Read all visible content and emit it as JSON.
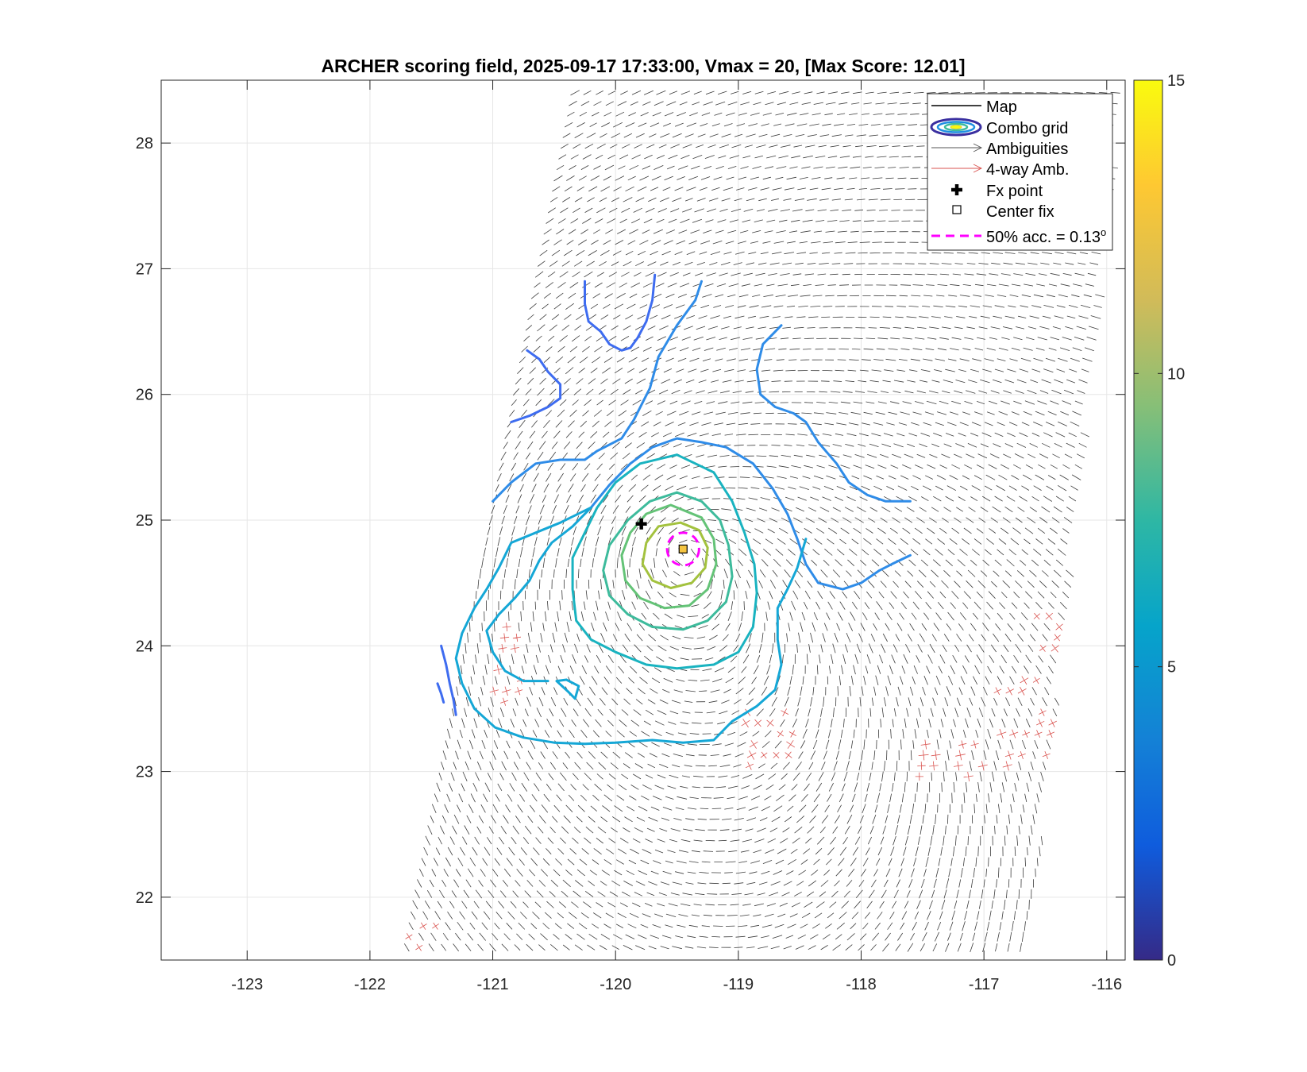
{
  "chart_data": {
    "type": "contour",
    "title": "ARCHER scoring field, 2025-09-17 17:33:00, Vmax = 20, [Max Score: 12.01]",
    "xlabel": "",
    "ylabel": "",
    "xlim": [
      -123.7,
      -115.85
    ],
    "ylim": [
      21.5,
      28.5
    ],
    "xticks": [
      -123,
      -122,
      -121,
      -120,
      -119,
      -118,
      -117,
      -116
    ],
    "yticks": [
      22,
      23,
      24,
      25,
      26,
      27,
      28
    ],
    "grid": true,
    "colorbar": {
      "range": [
        0,
        15
      ],
      "ticks": [
        0,
        5,
        10,
        15
      ],
      "colormap": "parula"
    },
    "center": {
      "lon": -119.45,
      "lat": 24.77
    },
    "contour_levels": [
      {
        "level": 3.8,
        "color": "#3e6cf0",
        "segments": [
          [
            [
              -120.25,
              26.9
            ],
            [
              -120.25,
              26.72
            ],
            [
              -120.22,
              26.58
            ],
            [
              -120.12,
              26.5
            ],
            [
              -120.05,
              26.4
            ],
            [
              -119.95,
              26.35
            ],
            [
              -119.88,
              26.37
            ]
          ],
          [
            [
              -119.88,
              26.37
            ],
            [
              -119.82,
              26.45
            ],
            [
              -119.75,
              26.58
            ],
            [
              -119.7,
              26.75
            ],
            [
              -119.68,
              26.95
            ]
          ],
          [
            [
              -120.72,
              26.35
            ],
            [
              -120.62,
              26.28
            ],
            [
              -120.55,
              26.18
            ],
            [
              -120.45,
              26.08
            ],
            [
              -120.45,
              25.97
            ],
            [
              -120.55,
              25.9
            ],
            [
              -120.7,
              25.83
            ],
            [
              -120.85,
              25.78
            ]
          ],
          [
            [
              -121.42,
              24.0
            ],
            [
              -121.38,
              23.85
            ],
            [
              -121.35,
              23.7
            ],
            [
              -121.32,
              23.57
            ],
            [
              -121.3,
              23.45
            ]
          ],
          [
            [
              -121.45,
              23.7
            ],
            [
              -121.42,
              23.62
            ],
            [
              -121.4,
              23.55
            ]
          ]
        ]
      },
      {
        "level": 4.8,
        "color": "#2f8ce8",
        "segments": [
          [
            [
              -121.0,
              25.15
            ],
            [
              -120.85,
              25.3
            ],
            [
              -120.65,
              25.45
            ],
            [
              -120.45,
              25.48
            ],
            [
              -120.25,
              25.48
            ],
            [
              -120.15,
              25.55
            ],
            [
              -119.95,
              25.65
            ],
            [
              -119.85,
              25.8
            ],
            [
              -119.72,
              26.05
            ],
            [
              -119.65,
              26.3
            ],
            [
              -119.5,
              26.55
            ],
            [
              -119.35,
              26.75
            ],
            [
              -119.3,
              26.9
            ]
          ],
          [
            [
              -118.65,
              26.55
            ],
            [
              -118.8,
              26.4
            ],
            [
              -118.85,
              26.2
            ],
            [
              -118.82,
              26.0
            ],
            [
              -118.7,
              25.9
            ],
            [
              -118.55,
              25.85
            ],
            [
              -118.45,
              25.78
            ],
            [
              -118.35,
              25.62
            ],
            [
              -118.2,
              25.45
            ],
            [
              -118.1,
              25.3
            ],
            [
              -117.95,
              25.2
            ],
            [
              -117.8,
              25.15
            ],
            [
              -117.6,
              25.15
            ]
          ],
          [
            [
              -117.6,
              24.72
            ],
            [
              -117.75,
              24.65
            ],
            [
              -117.85,
              24.6
            ],
            [
              -118.0,
              24.5
            ],
            [
              -118.15,
              24.45
            ],
            [
              -118.35,
              24.5
            ],
            [
              -118.45,
              24.65
            ],
            [
              -118.52,
              24.85
            ],
            [
              -118.6,
              25.05
            ],
            [
              -118.72,
              25.25
            ],
            [
              -118.88,
              25.45
            ],
            [
              -119.1,
              25.58
            ],
            [
              -119.3,
              25.62
            ],
            [
              -119.5,
              25.65
            ],
            [
              -119.7,
              25.58
            ],
            [
              -119.88,
              25.45
            ],
            [
              -120.05,
              25.28
            ],
            [
              -120.2,
              25.1
            ]
          ]
        ]
      },
      {
        "level": 6.0,
        "color": "#15a7d6",
        "segments": [
          [
            [
              -120.2,
              25.1
            ],
            [
              -120.45,
              24.98
            ],
            [
              -120.65,
              24.9
            ],
            [
              -120.85,
              24.82
            ],
            [
              -120.95,
              24.62
            ],
            [
              -121.05,
              24.45
            ],
            [
              -121.15,
              24.3
            ],
            [
              -121.25,
              24.1
            ],
            [
              -121.3,
              23.9
            ],
            [
              -121.25,
              23.7
            ],
            [
              -121.15,
              23.5
            ],
            [
              -120.98,
              23.35
            ],
            [
              -120.75,
              23.27
            ],
            [
              -120.5,
              23.23
            ],
            [
              -120.25,
              23.22
            ],
            [
              -120.0,
              23.23
            ],
            [
              -119.7,
              23.25
            ],
            [
              -119.45,
              23.23
            ],
            [
              -119.2,
              23.25
            ],
            [
              -119.05,
              23.4
            ],
            [
              -118.85,
              23.52
            ],
            [
              -118.7,
              23.65
            ],
            [
              -118.65,
              23.85
            ],
            [
              -118.68,
              24.05
            ],
            [
              -118.68,
              24.3
            ],
            [
              -118.6,
              24.45
            ],
            [
              -118.52,
              24.62
            ],
            [
              -118.45,
              24.85
            ]
          ],
          [
            [
              -120.2,
              25.1
            ],
            [
              -120.35,
              24.95
            ],
            [
              -120.52,
              24.82
            ],
            [
              -120.62,
              24.68
            ],
            [
              -120.7,
              24.52
            ],
            [
              -120.82,
              24.38
            ],
            [
              -120.95,
              24.25
            ],
            [
              -121.05,
              24.12
            ],
            [
              -121.0,
              23.95
            ],
            [
              -120.9,
              23.8
            ],
            [
              -120.75,
              23.72
            ],
            [
              -120.55,
              23.72
            ]
          ],
          [
            [
              -120.4,
              23.73
            ],
            [
              -120.3,
              23.68
            ],
            [
              -120.33,
              23.58
            ],
            [
              -120.38,
              23.63
            ],
            [
              -120.48,
              23.72
            ],
            [
              -120.4,
              23.73
            ]
          ]
        ]
      },
      {
        "level": 7.2,
        "color": "#19b3c0",
        "segments": [
          [
            [
              -119.5,
              25.52
            ],
            [
              -119.8,
              25.45
            ],
            [
              -120.0,
              25.3
            ],
            [
              -120.15,
              25.1
            ],
            [
              -120.25,
              24.9
            ],
            [
              -120.35,
              24.7
            ],
            [
              -120.35,
              24.45
            ],
            [
              -120.32,
              24.2
            ],
            [
              -120.2,
              24.05
            ],
            [
              -120.0,
              23.95
            ],
            [
              -119.75,
              23.85
            ],
            [
              -119.5,
              23.82
            ],
            [
              -119.2,
              23.85
            ],
            [
              -119.0,
              23.95
            ],
            [
              -118.88,
              24.15
            ],
            [
              -118.85,
              24.42
            ],
            [
              -118.87,
              24.65
            ],
            [
              -118.95,
              24.9
            ],
            [
              -119.05,
              25.15
            ],
            [
              -119.2,
              25.38
            ],
            [
              -119.5,
              25.52
            ]
          ]
        ]
      },
      {
        "level": 8.4,
        "color": "#3dbb9c",
        "segments": [
          [
            [
              -119.5,
              25.22
            ],
            [
              -119.72,
              25.15
            ],
            [
              -119.9,
              25.0
            ],
            [
              -120.05,
              24.8
            ],
            [
              -120.1,
              24.6
            ],
            [
              -120.05,
              24.4
            ],
            [
              -119.9,
              24.25
            ],
            [
              -119.7,
              24.15
            ],
            [
              -119.45,
              24.13
            ],
            [
              -119.25,
              24.2
            ],
            [
              -119.1,
              24.35
            ],
            [
              -119.05,
              24.55
            ],
            [
              -119.08,
              24.8
            ],
            [
              -119.15,
              25.0
            ],
            [
              -119.3,
              25.15
            ],
            [
              -119.5,
              25.22
            ]
          ]
        ]
      },
      {
        "level": 9.6,
        "color": "#64c377",
        "segments": [
          [
            [
              -119.55,
              25.12
            ],
            [
              -119.75,
              25.05
            ],
            [
              -119.88,
              24.9
            ],
            [
              -119.95,
              24.72
            ],
            [
              -119.92,
              24.52
            ],
            [
              -119.8,
              24.38
            ],
            [
              -119.6,
              24.3
            ],
            [
              -119.4,
              24.32
            ],
            [
              -119.25,
              24.45
            ],
            [
              -119.18,
              24.65
            ],
            [
              -119.2,
              24.85
            ],
            [
              -119.3,
              25.02
            ],
            [
              -119.55,
              25.12
            ]
          ]
        ]
      },
      {
        "level": 10.8,
        "color": "#a3c23e",
        "segments": [
          [
            [
              -119.47,
              24.98
            ],
            [
              -119.65,
              24.95
            ],
            [
              -119.75,
              24.82
            ],
            [
              -119.78,
              24.65
            ],
            [
              -119.7,
              24.52
            ],
            [
              -119.55,
              24.46
            ],
            [
              -119.38,
              24.5
            ],
            [
              -119.27,
              24.62
            ],
            [
              -119.25,
              24.78
            ],
            [
              -119.32,
              24.92
            ],
            [
              -119.47,
              24.98
            ]
          ]
        ]
      }
    ],
    "markers": [
      {
        "name": "Fx point",
        "lon": -119.79,
        "lat": 24.97,
        "symbol": "plus"
      },
      {
        "name": "Center fix",
        "lon": -119.45,
        "lat": 24.77,
        "symbol": "square"
      }
    ],
    "circle": {
      "name": "50% acc.",
      "radius_deg": 0.13,
      "color": "#ff00ff"
    },
    "swath": {
      "left_edge": [
        [
          -121.75,
          21.55
        ],
        [
          -120.35,
          28.5
        ]
      ],
      "right_edge": [
        [
          -116.6,
          21.55
        ],
        [
          -115.85,
          28.5
        ]
      ]
    },
    "legend": {
      "location": "top-right",
      "entries": [
        {
          "name": "map",
          "label": "Map"
        },
        {
          "name": "combo-grid",
          "label": "Combo grid"
        },
        {
          "name": "ambiguities",
          "label": "Ambiguities"
        },
        {
          "name": "four-way",
          "label": "4-way Amb."
        },
        {
          "name": "fx-point",
          "label": "Fx point"
        },
        {
          "name": "center-fix",
          "label": "Center fix"
        },
        {
          "name": "accuracy",
          "label": "50% acc. = 0.13",
          "suffix": "o"
        }
      ]
    }
  }
}
